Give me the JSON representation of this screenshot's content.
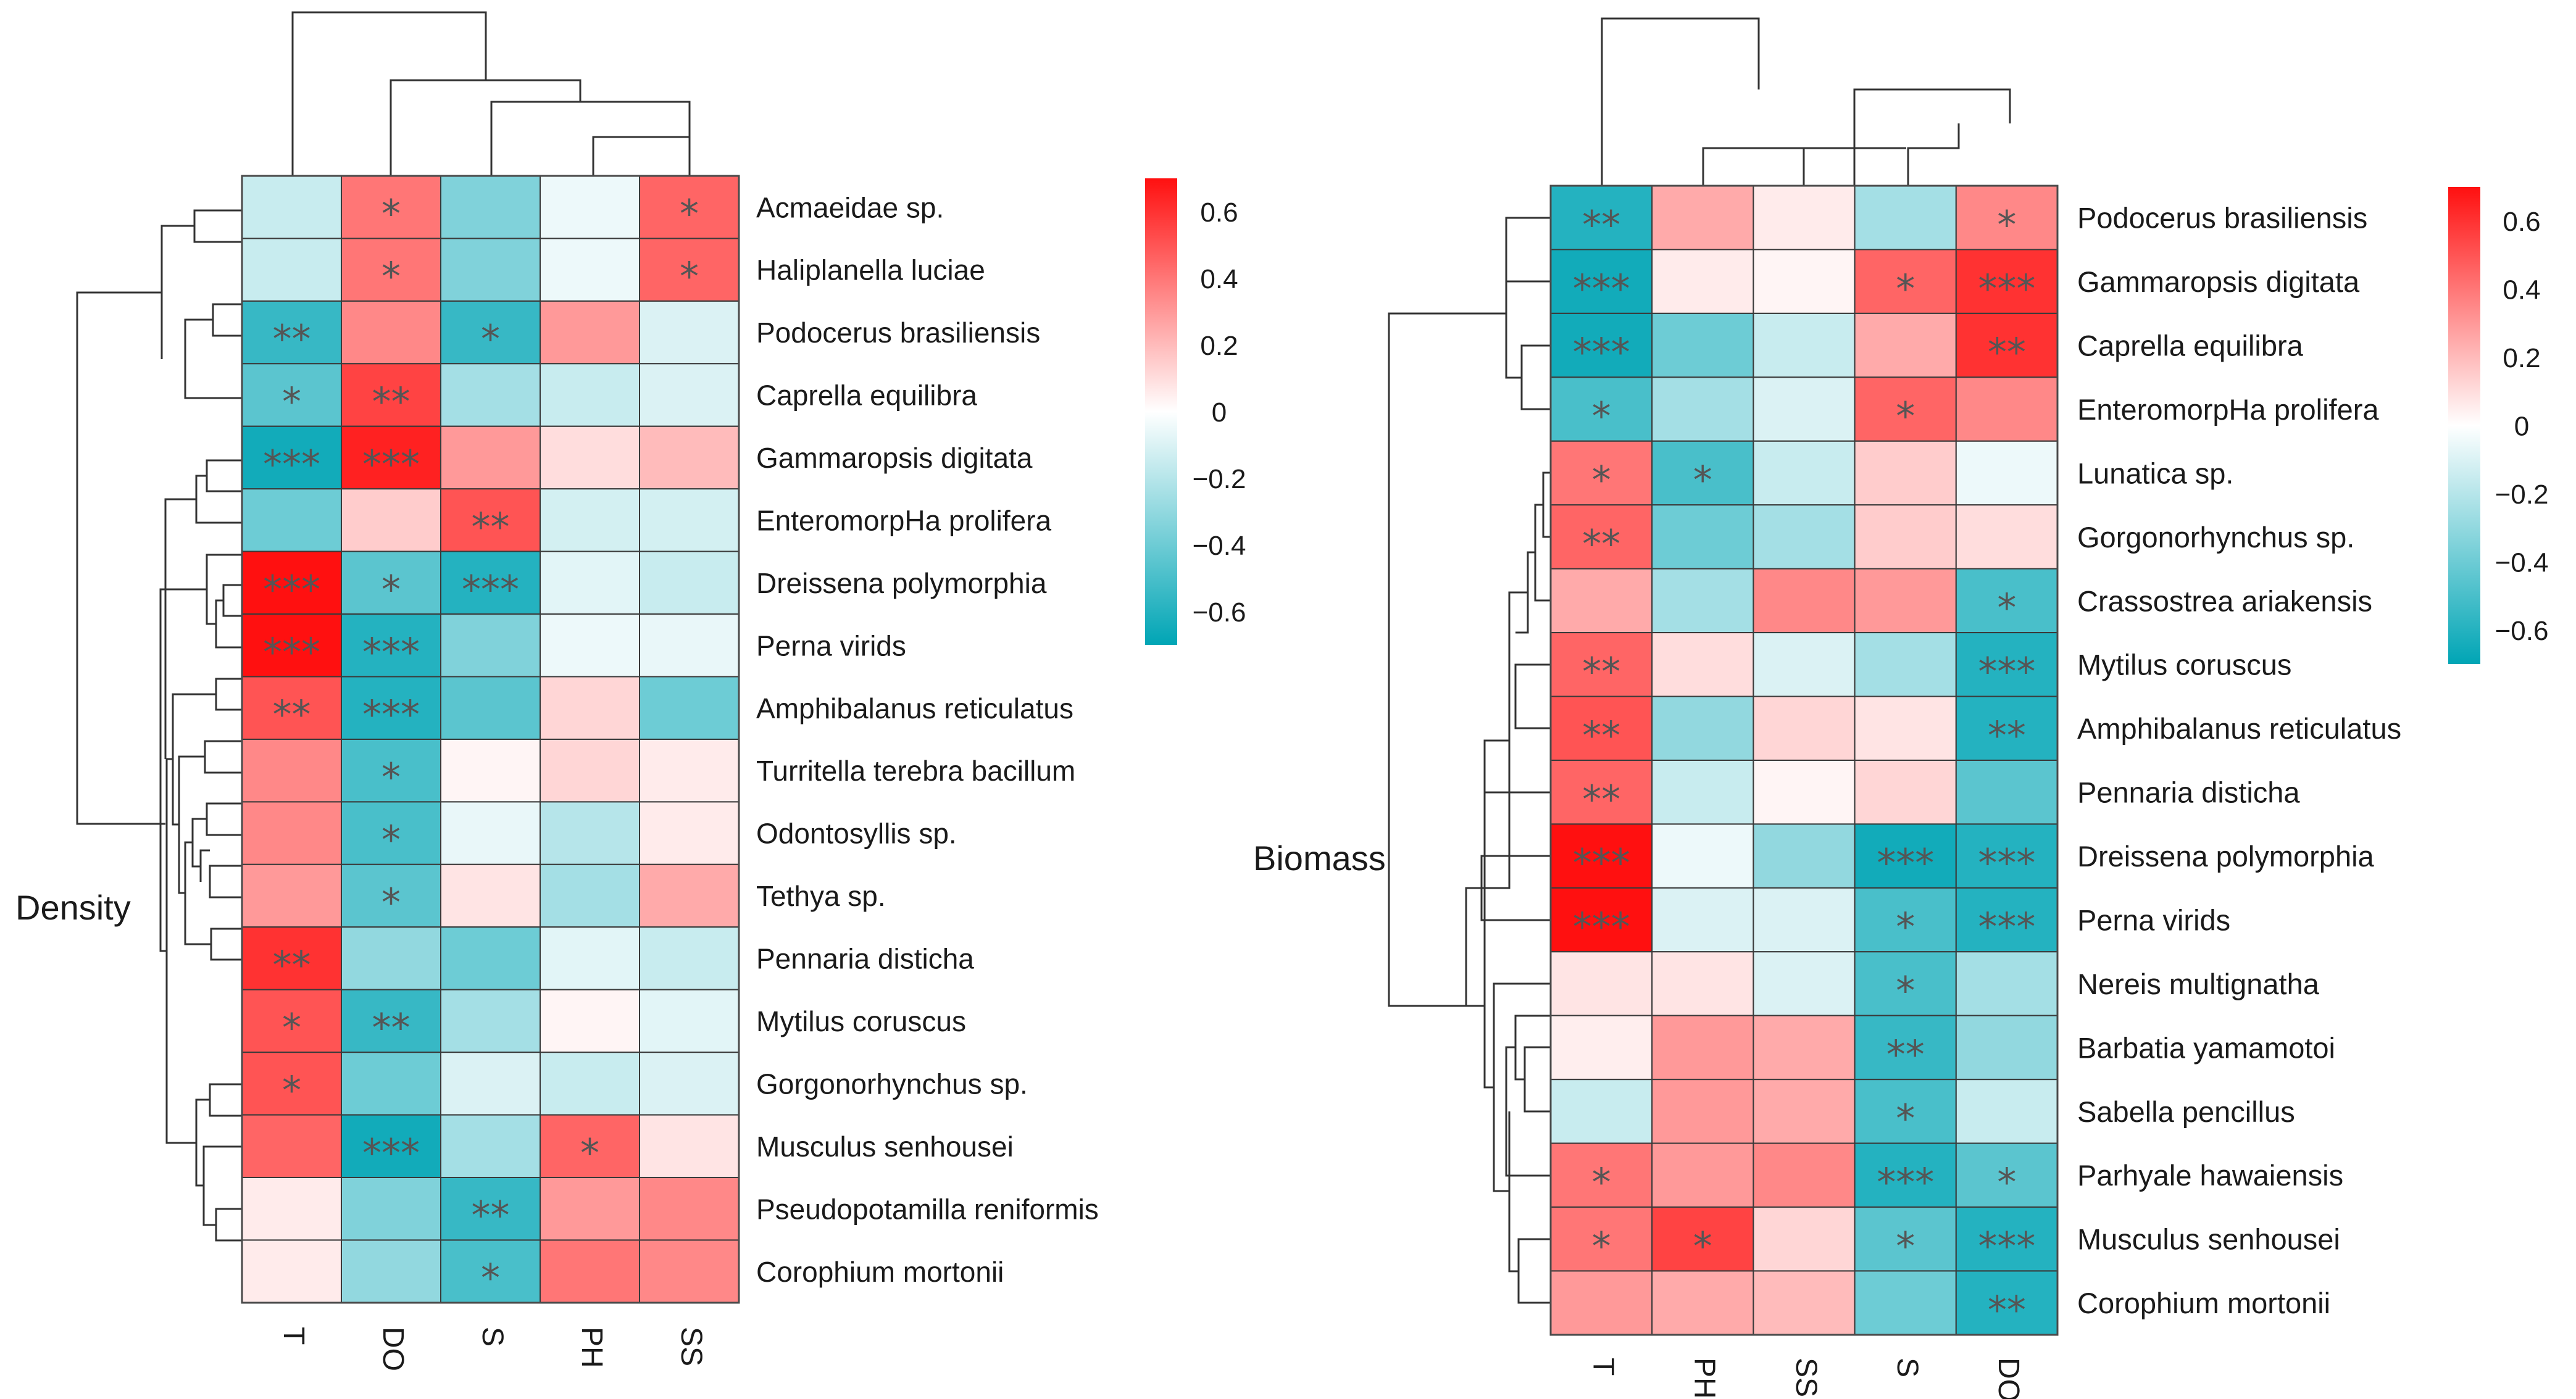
{
  "legend_ticks": [
    "0.6",
    "0.4",
    "0.2",
    "0",
    "−0.2",
    "−0.4",
    "−0.6"
  ],
  "legend_values": [
    0.6,
    0.4,
    0.2,
    0,
    -0.2,
    -0.4,
    -0.6
  ],
  "colors": {
    "low": "#00A5B5",
    "mid": "#FFFFFF",
    "high": "#FF1010",
    "star": "#555555",
    "dendrogram": "#333333"
  },
  "chart_data": [
    {
      "type": "heatmap",
      "title": "Density",
      "color_range": [
        -0.7,
        0.7
      ],
      "columns": [
        "T",
        "DO",
        "S",
        "PH",
        "SS"
      ],
      "rows": [
        "Acmaeidae sp.",
        "Haliplanella luciae",
        "Podocerus brasiliensis",
        "Caprella equilibra",
        "Gammaropsis digitata",
        "EnteromorpHa prolifera",
        "Dreissena polymorphia",
        "Perna virids",
        "Amphibalanus reticulatus",
        "Turritella terebra bacillum",
        "Odontosyllis sp.",
        "Tethya sp.",
        "Pennaria disticha",
        "Mytilus coruscus",
        "Gorgonorhynchus sp.",
        "Musculus senhousei",
        "Pseudopotamilla reniformis",
        "Corophium mortonii"
      ],
      "values": [
        [
          -0.15,
          0.4,
          -0.35,
          -0.05,
          0.45
        ],
        [
          -0.15,
          0.4,
          -0.35,
          -0.05,
          0.45
        ],
        [
          -0.55,
          0.35,
          -0.55,
          0.3,
          -0.1
        ],
        [
          -0.45,
          0.55,
          -0.25,
          -0.15,
          -0.1
        ],
        [
          -0.65,
          0.65,
          0.3,
          0.1,
          0.2
        ],
        [
          -0.4,
          0.15,
          0.5,
          -0.12,
          -0.12
        ],
        [
          0.7,
          -0.45,
          -0.6,
          -0.08,
          -0.15
        ],
        [
          0.7,
          -0.6,
          -0.35,
          -0.05,
          -0.06
        ],
        [
          0.5,
          -0.6,
          -0.45,
          0.12,
          -0.4
        ],
        [
          0.35,
          -0.5,
          0.03,
          0.12,
          0.06
        ],
        [
          0.35,
          -0.5,
          -0.06,
          -0.2,
          0.06
        ],
        [
          0.3,
          -0.45,
          0.08,
          -0.25,
          0.25
        ],
        [
          0.6,
          -0.3,
          -0.4,
          -0.08,
          -0.15
        ],
        [
          0.5,
          -0.55,
          -0.25,
          0.03,
          -0.08
        ],
        [
          0.5,
          -0.4,
          -0.1,
          -0.15,
          -0.1
        ],
        [
          0.45,
          -0.65,
          -0.25,
          0.45,
          0.08
        ],
        [
          0.06,
          -0.35,
          -0.55,
          0.3,
          0.35
        ],
        [
          0.06,
          -0.3,
          -0.5,
          0.4,
          0.35
        ]
      ],
      "stars": [
        [
          "",
          "*",
          "",
          "",
          "*"
        ],
        [
          "",
          "*",
          "",
          "",
          "*"
        ],
        [
          "**",
          "",
          "*",
          "",
          ""
        ],
        [
          "*",
          "**",
          "",
          "",
          ""
        ],
        [
          "***",
          "***",
          "",
          "",
          ""
        ],
        [
          "",
          "",
          "**",
          "",
          ""
        ],
        [
          "***",
          "*",
          "***",
          "",
          ""
        ],
        [
          "***",
          "***",
          "",
          "",
          ""
        ],
        [
          "**",
          "***",
          "",
          "",
          ""
        ],
        [
          "",
          "*",
          "",
          "",
          ""
        ],
        [
          "",
          "*",
          "",
          "",
          ""
        ],
        [
          "",
          "*",
          "",
          "",
          ""
        ],
        [
          "**",
          "",
          "",
          "",
          ""
        ],
        [
          "*",
          "**",
          "",
          "",
          ""
        ],
        [
          "*",
          "",
          "",
          "",
          ""
        ],
        [
          "",
          "***",
          "",
          "*",
          ""
        ],
        [
          "",
          "",
          "**",
          "",
          ""
        ],
        [
          "",
          "",
          "*",
          "",
          ""
        ]
      ]
    },
    {
      "type": "heatmap",
      "title": "Biomass",
      "color_range": [
        -0.7,
        0.7
      ],
      "columns": [
        "T",
        "PH",
        "SS",
        "S",
        "DO"
      ],
      "rows": [
        "Podocerus brasiliensis",
        "Gammaropsis digitata",
        "Caprella equilibra",
        "EnteromorpHa prolifera",
        "Lunatica sp.",
        "Gorgonorhynchus sp.",
        "Crassostrea ariakensis",
        "Mytilus coruscus",
        "Amphibalanus reticulatus",
        "Pennaria disticha",
        "Dreissena polymorphia",
        "Perna virids",
        "Nereis multignatha",
        "Barbatia yamamotoi",
        "Sabella pencillus",
        "Parhyale hawaiensis",
        "Musculus senhousei",
        "Corophium mortonii"
      ],
      "values": [
        [
          -0.6,
          0.25,
          0.06,
          -0.25,
          0.35
        ],
        [
          -0.65,
          0.06,
          0.03,
          0.45,
          0.6
        ],
        [
          -0.65,
          -0.4,
          -0.15,
          0.25,
          0.6
        ],
        [
          -0.5,
          -0.25,
          -0.1,
          0.45,
          0.35
        ],
        [
          0.4,
          -0.5,
          -0.15,
          0.15,
          -0.05
        ],
        [
          0.45,
          -0.4,
          -0.25,
          0.15,
          0.1
        ],
        [
          0.25,
          -0.25,
          0.35,
          0.3,
          -0.5
        ],
        [
          0.45,
          0.1,
          -0.1,
          -0.25,
          -0.6
        ],
        [
          0.5,
          -0.3,
          0.12,
          0.08,
          -0.6
        ],
        [
          0.45,
          -0.15,
          0.03,
          0.12,
          -0.45
        ],
        [
          0.7,
          -0.05,
          -0.3,
          -0.65,
          -0.6
        ],
        [
          0.7,
          -0.1,
          -0.1,
          -0.5,
          -0.6
        ],
        [
          0.08,
          0.08,
          -0.1,
          -0.5,
          -0.25
        ],
        [
          0.05,
          0.3,
          0.25,
          -0.55,
          -0.3
        ],
        [
          -0.15,
          0.3,
          0.25,
          -0.5,
          -0.15
        ],
        [
          0.4,
          0.3,
          0.35,
          -0.6,
          -0.45
        ],
        [
          0.4,
          0.55,
          0.12,
          -0.45,
          -0.6
        ],
        [
          0.3,
          0.25,
          0.2,
          -0.4,
          -0.6
        ]
      ],
      "stars": [
        [
          "**",
          "",
          "",
          "",
          "*"
        ],
        [
          "***",
          "",
          "",
          "*",
          "***"
        ],
        [
          "***",
          "",
          "",
          "",
          "**"
        ],
        [
          "*",
          "",
          "",
          "*",
          ""
        ],
        [
          "*",
          "*",
          "",
          "",
          ""
        ],
        [
          "**",
          "",
          "",
          "",
          ""
        ],
        [
          "",
          "",
          "",
          "",
          "*"
        ],
        [
          "**",
          "",
          "",
          "",
          "***"
        ],
        [
          "**",
          "",
          "",
          "",
          "**"
        ],
        [
          "**",
          "",
          "",
          "",
          ""
        ],
        [
          "***",
          "",
          "",
          "***",
          "***"
        ],
        [
          "***",
          "",
          "",
          "*",
          "***"
        ],
        [
          "",
          "",
          "",
          "*",
          ""
        ],
        [
          "",
          "",
          "",
          "**",
          ""
        ],
        [
          "",
          "",
          "",
          "*",
          ""
        ],
        [
          "*",
          "",
          "",
          "***",
          "*"
        ],
        [
          "*",
          "*",
          "",
          "*",
          "***"
        ],
        [
          "",
          "",
          "",
          "",
          "**"
        ]
      ]
    }
  ]
}
